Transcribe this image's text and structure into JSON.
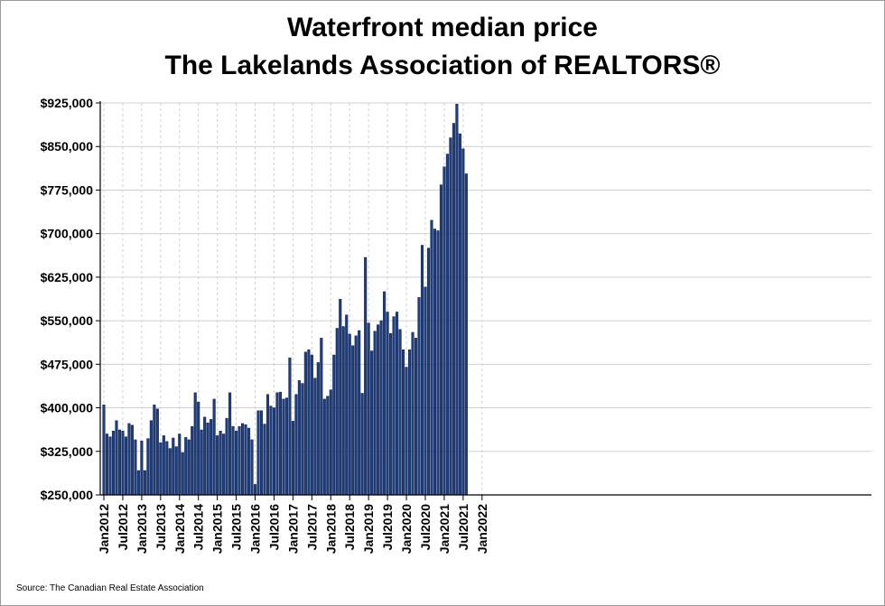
{
  "chart_data": {
    "type": "bar",
    "title": "Waterfront median price",
    "subtitle": "The Lakelands Association of REALTORS®",
    "source": "Source: The Canadian Real Estate Association",
    "ylim": [
      250000,
      925000
    ],
    "yticks": [
      {
        "value": 250000,
        "label": "$250,000"
      },
      {
        "value": 325000,
        "label": "$325,000"
      },
      {
        "value": 400000,
        "label": "$400,000"
      },
      {
        "value": 475000,
        "label": "$475,000"
      },
      {
        "value": 550000,
        "label": "$550,000"
      },
      {
        "value": 625000,
        "label": "$625,000"
      },
      {
        "value": 700000,
        "label": "$700,000"
      },
      {
        "value": 775000,
        "label": "$775,000"
      },
      {
        "value": 850000,
        "label": "$850,000"
      },
      {
        "value": 925000,
        "label": "$925,000"
      }
    ],
    "xticks": [
      "Jan2012",
      "Jul2012",
      "Jan2013",
      "Jul2013",
      "Jan2014",
      "Jul2014",
      "Jan2015",
      "Jul2015",
      "Jan2016",
      "Jul2016",
      "Jan2017",
      "Jul2017",
      "Jan2018",
      "Jul2018",
      "Jan2019",
      "Jul2019",
      "Jan2020",
      "Jul2020",
      "Jan2021",
      "Jul2021",
      "Jan2022"
    ],
    "grid": true,
    "bar_color": "#1f3f7f",
    "start": "Jan2012",
    "values": [
      405000,
      355000,
      350000,
      360000,
      378000,
      362000,
      360000,
      350000,
      373000,
      370000,
      345000,
      292000,
      343000,
      292000,
      347000,
      378000,
      405000,
      398000,
      340000,
      352000,
      342000,
      330000,
      348000,
      333000,
      355000,
      323000,
      349000,
      345000,
      368000,
      426000,
      410000,
      362000,
      384000,
      374000,
      380000,
      415000,
      352000,
      360000,
      355000,
      382000,
      426000,
      368000,
      360000,
      368000,
      373000,
      371000,
      365000,
      345000,
      268000,
      395000,
      395000,
      372000,
      423000,
      403000,
      400000,
      426000,
      427000,
      415000,
      417000,
      486000,
      377000,
      423000,
      447000,
      442000,
      496000,
      500000,
      491000,
      451000,
      478000,
      520000,
      415000,
      420000,
      431000,
      491000,
      537000,
      587000,
      540000,
      560000,
      527000,
      507000,
      524000,
      533000,
      425000,
      659000,
      546000,
      498000,
      532000,
      543000,
      550000,
      600000,
      565000,
      528000,
      557000,
      565000,
      535000,
      500000,
      470000,
      500000,
      530000,
      520000,
      590000,
      680000,
      608000,
      675000,
      723000,
      708000,
      705000,
      784000,
      815000,
      837000,
      865000,
      890000,
      923000,
      872000,
      846000,
      803000
    ]
  }
}
